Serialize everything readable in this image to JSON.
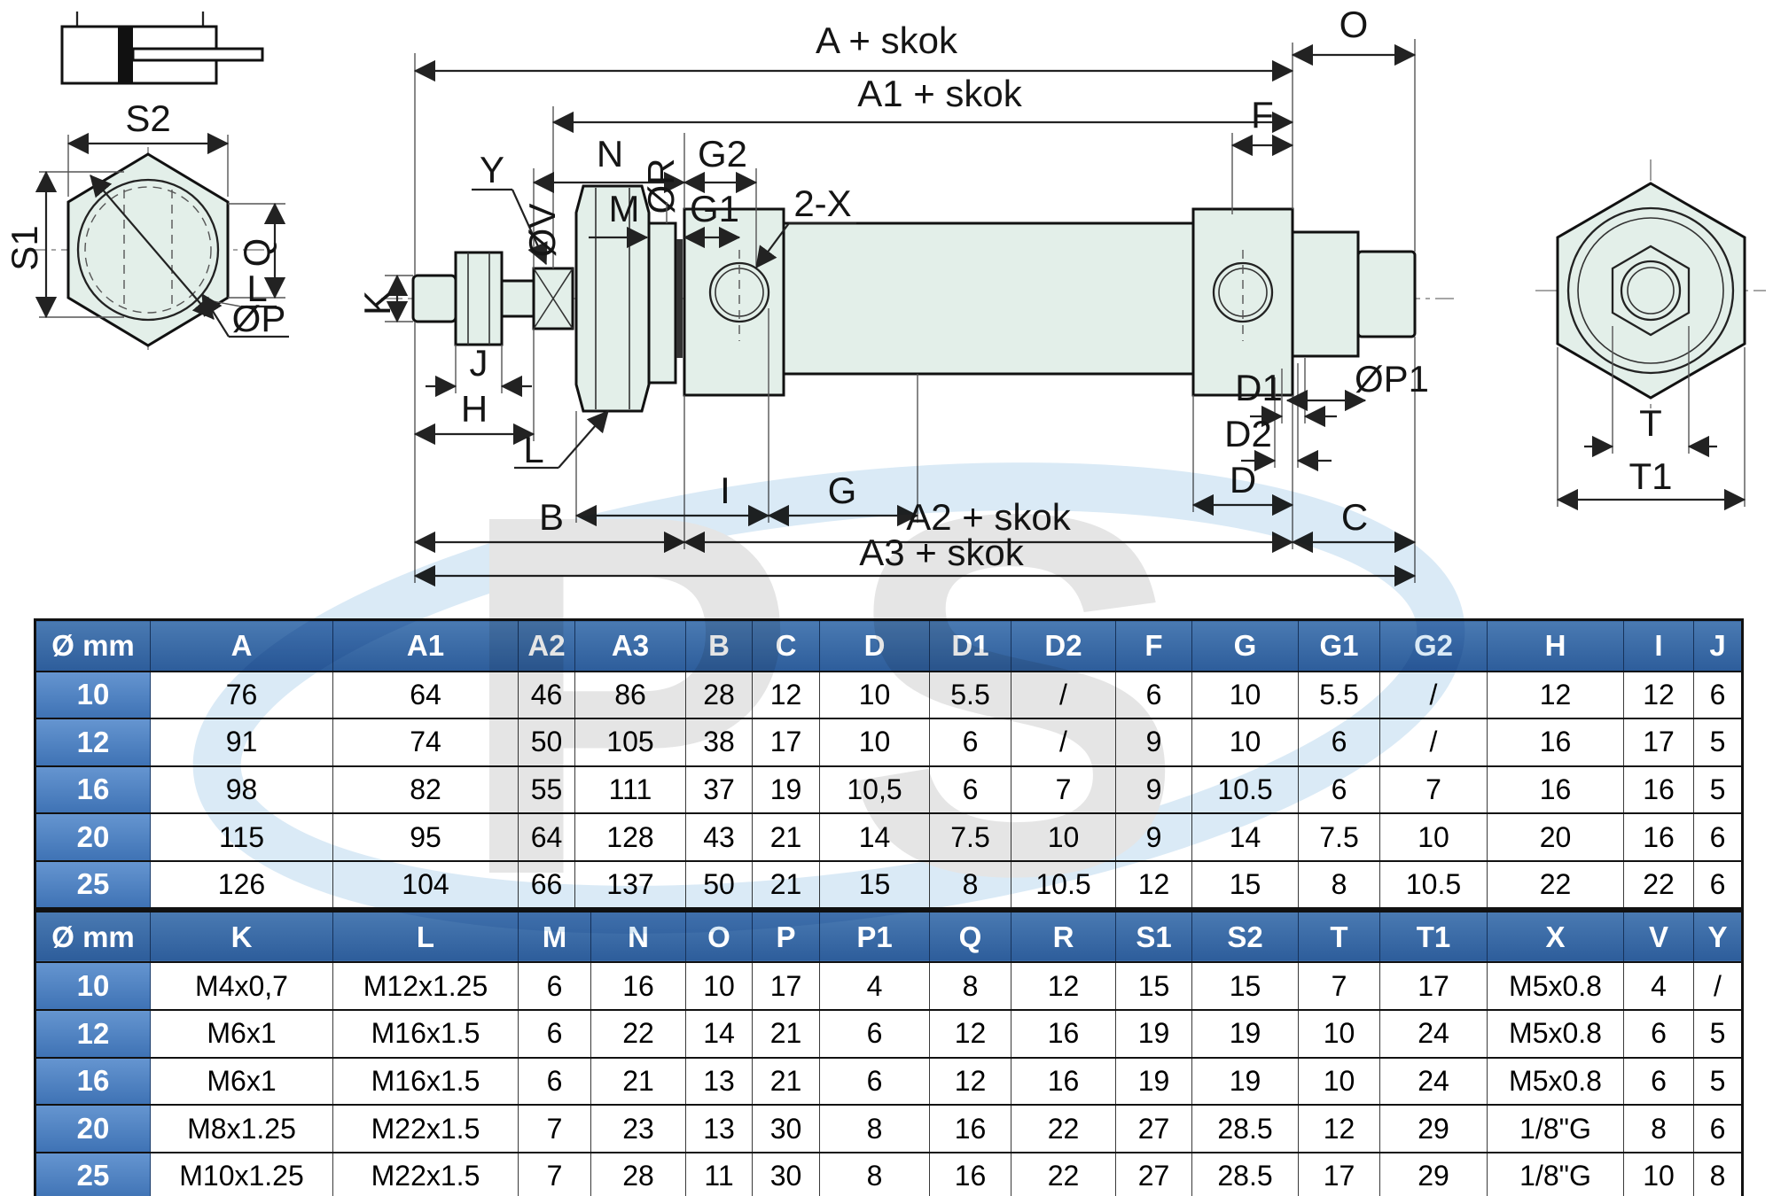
{
  "watermark": {
    "text": "PS"
  },
  "colors": {
    "header_blue": "#2d5d9b",
    "row_label_blue": "#4377b8",
    "part_fill": "#e3efe9",
    "swoosh_blue": "#bcd9ee",
    "watermark_grey": "#cfcfcf"
  },
  "drawing": {
    "labels": {
      "a_skok": "A + skok",
      "a1_skok": "A1 + skok",
      "o": "O",
      "f": "F",
      "n": "N",
      "g2": "G2",
      "m": "M",
      "g1": "G1",
      "two_x": "2-X",
      "or": "ØR",
      "ov": "ØV",
      "y": "Y",
      "k": "K",
      "j": "J",
      "h": "H",
      "l_main": "L",
      "i": "I",
      "g": "G",
      "b": "B",
      "a2_skok": "A2 + skok",
      "c": "C",
      "a3_skok": "A3 + skok",
      "d1": "D1",
      "d2": "D2",
      "d": "D",
      "op1": "ØP1",
      "s2": "S2",
      "s1": "S1",
      "q": "Q",
      "l_hex": "L",
      "op": "ØP",
      "t": "T",
      "t1": "T1"
    }
  },
  "tables": {
    "header_label": "Ø mm",
    "table1": {
      "name": "dimensions-table-1",
      "columns": [
        "A",
        "A1",
        "A2",
        "A3",
        "B",
        "C",
        "D",
        "D1",
        "D2",
        "F",
        "G",
        "G1",
        "G2",
        "H",
        "I",
        "J"
      ],
      "rows": [
        {
          "d": "10",
          "values": [
            "76",
            "64",
            "46",
            "86",
            "28",
            "12",
            "10",
            "5.5",
            "/",
            "6",
            "10",
            "5.5",
            "/",
            "12",
            "12",
            "6"
          ]
        },
        {
          "d": "12",
          "values": [
            "91",
            "74",
            "50",
            "105",
            "38",
            "17",
            "10",
            "6",
            "/",
            "9",
            "10",
            "6",
            "/",
            "16",
            "17",
            "5"
          ]
        },
        {
          "d": "16",
          "values": [
            "98",
            "82",
            "55",
            "111",
            "37",
            "19",
            "10,5",
            "6",
            "7",
            "9",
            "10.5",
            "6",
            "7",
            "16",
            "16",
            "5"
          ]
        },
        {
          "d": "20",
          "values": [
            "115",
            "95",
            "64",
            "128",
            "43",
            "21",
            "14",
            "7.5",
            "10",
            "9",
            "14",
            "7.5",
            "10",
            "20",
            "16",
            "6"
          ]
        },
        {
          "d": "25",
          "values": [
            "126",
            "104",
            "66",
            "137",
            "50",
            "21",
            "15",
            "8",
            "10.5",
            "12",
            "15",
            "8",
            "10.5",
            "22",
            "22",
            "6"
          ]
        }
      ]
    },
    "table2": {
      "name": "dimensions-table-2",
      "columns": [
        "K",
        "L",
        "M",
        "N",
        "O",
        "P",
        "P1",
        "Q",
        "R",
        "S1",
        "S2",
        "T",
        "T1",
        "X",
        "V",
        "Y"
      ],
      "rows": [
        {
          "d": "10",
          "values": [
            "M4x0,7",
            "M12x1.25",
            "6",
            "16",
            "10",
            "17",
            "4",
            "8",
            "12",
            "15",
            "15",
            "7",
            "17",
            "M5x0.8",
            "4",
            "/"
          ]
        },
        {
          "d": "12",
          "values": [
            "M6x1",
            "M16x1.5",
            "6",
            "22",
            "14",
            "21",
            "6",
            "12",
            "16",
            "19",
            "19",
            "10",
            "24",
            "M5x0.8",
            "6",
            "5"
          ]
        },
        {
          "d": "16",
          "values": [
            "M6x1",
            "M16x1.5",
            "6",
            "21",
            "13",
            "21",
            "6",
            "12",
            "16",
            "19",
            "19",
            "10",
            "24",
            "M5x0.8",
            "6",
            "5"
          ]
        },
        {
          "d": "20",
          "values": [
            "M8x1.25",
            "M22x1.5",
            "7",
            "23",
            "13",
            "30",
            "8",
            "16",
            "22",
            "27",
            "28.5",
            "12",
            "29",
            "1/8\"G",
            "8",
            "6"
          ]
        },
        {
          "d": "25",
          "values": [
            "M10x1.25",
            "M22x1.5",
            "7",
            "28",
            "11",
            "30",
            "8",
            "16",
            "22",
            "27",
            "28.5",
            "17",
            "29",
            "1/8\"G",
            "10",
            "8"
          ]
        }
      ]
    }
  }
}
